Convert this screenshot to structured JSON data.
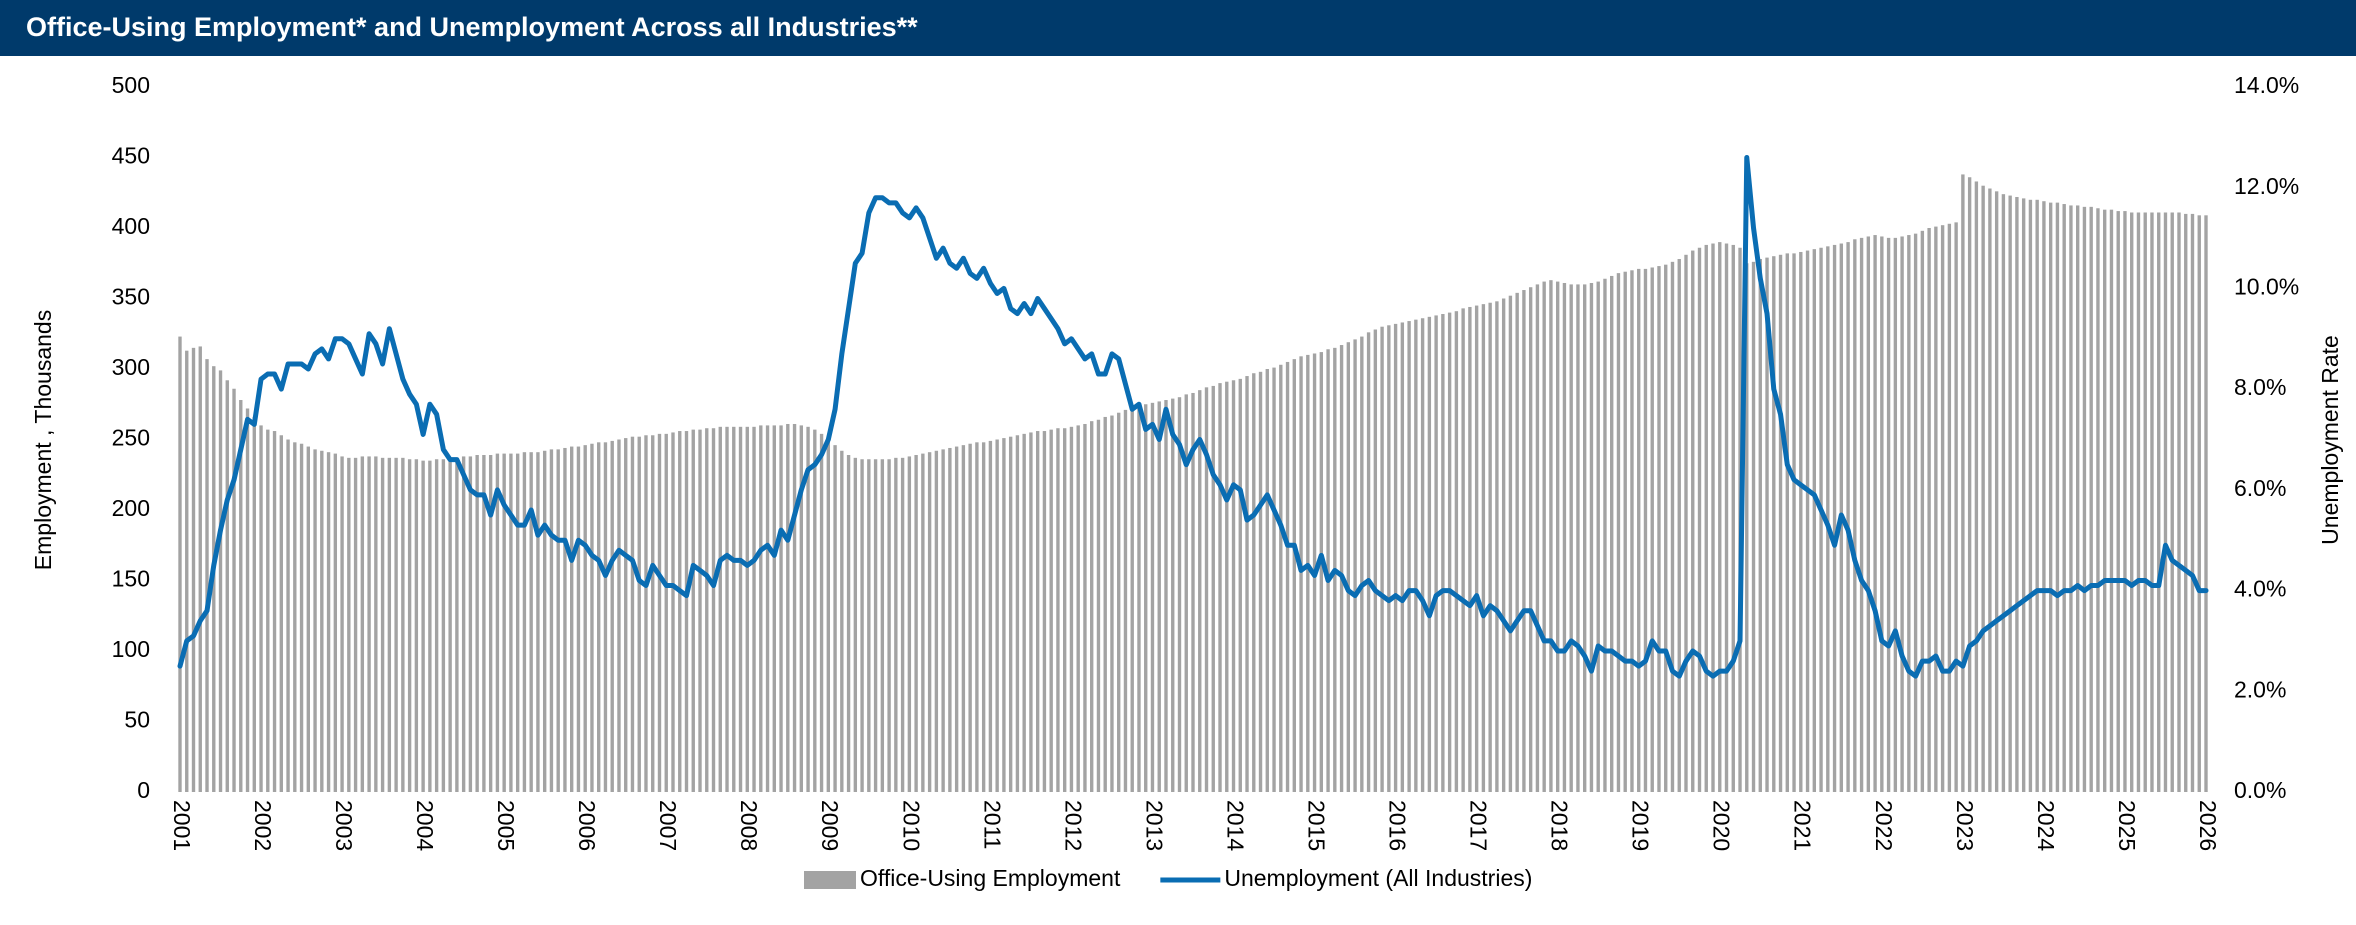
{
  "chart_data": {
    "type": "bar_line",
    "title": "Office-Using Employment* and Unemployment Across all Industries**",
    "y_label": "Employment , Thousands",
    "y2_label": "Unemployment Rate",
    "categories": [
      "2001",
      null,
      null,
      null,
      null,
      null,
      null,
      null,
      null,
      null,
      null,
      null,
      "2002",
      null,
      null,
      null,
      null,
      null,
      null,
      null,
      null,
      null,
      null,
      null,
      "2003",
      null,
      null,
      null,
      null,
      null,
      null,
      null,
      null,
      null,
      null,
      null,
      "2004",
      null,
      null,
      null,
      null,
      null,
      null,
      null,
      null,
      null,
      null,
      null,
      "2005",
      null,
      null,
      null,
      null,
      null,
      null,
      null,
      null,
      null,
      null,
      null,
      "2006",
      null,
      null,
      null,
      null,
      null,
      null,
      null,
      null,
      null,
      null,
      null,
      "2007",
      null,
      null,
      null,
      null,
      null,
      null,
      null,
      null,
      null,
      null,
      null,
      "2008",
      null,
      null,
      null,
      null,
      null,
      null,
      null,
      null,
      null,
      null,
      null,
      "2009",
      null,
      null,
      null,
      null,
      null,
      null,
      null,
      null,
      null,
      null,
      null,
      "2010",
      null,
      null,
      null,
      null,
      null,
      null,
      null,
      null,
      null,
      null,
      null,
      "2011",
      null,
      null,
      null,
      null,
      null,
      null,
      null,
      null,
      null,
      null,
      null,
      "2012",
      null,
      null,
      null,
      null,
      null,
      null,
      null,
      null,
      null,
      null,
      null,
      "2013",
      null,
      null,
      null,
      null,
      null,
      null,
      null,
      null,
      null,
      null,
      null,
      "2014",
      null,
      null,
      null,
      null,
      null,
      null,
      null,
      null,
      null,
      null,
      null,
      "2015",
      null,
      null,
      null,
      null,
      null,
      null,
      null,
      null,
      null,
      null,
      null,
      "2016",
      null,
      null,
      null,
      null,
      null,
      null,
      null,
      null,
      null,
      null,
      null,
      "2017",
      null,
      null,
      null,
      null,
      null,
      null,
      null,
      null,
      null,
      null,
      null,
      "2018",
      null,
      null,
      null,
      null,
      null,
      null,
      null,
      null,
      null,
      null,
      null,
      "2019",
      null,
      null,
      null,
      null,
      null,
      null,
      null,
      null,
      null,
      null,
      null,
      "2020",
      null,
      null,
      null,
      null,
      null,
      null,
      null,
      null,
      null,
      null,
      null,
      "2021",
      null,
      null,
      null,
      null,
      null,
      null,
      null,
      null,
      null,
      null,
      null,
      "2022",
      null,
      null,
      null,
      null,
      null,
      null,
      null,
      null,
      null,
      null,
      null,
      "2023",
      null,
      null,
      null,
      null,
      null,
      null,
      null,
      null,
      null,
      null,
      null,
      "2024",
      null,
      null,
      null,
      null,
      null,
      null,
      null,
      null,
      null,
      null,
      null,
      "2025",
      null,
      null,
      null,
      null,
      null,
      null,
      null,
      null,
      null,
      null,
      null,
      "2026"
    ],
    "series": [
      {
        "name": "Office-Using Employment",
        "type": "bar",
        "color": "#a3a3a3",
        "values": [
          323,
          313,
          315,
          316,
          307,
          302,
          299,
          292,
          286,
          278,
          272,
          266,
          260,
          257,
          256,
          253,
          250,
          248,
          247,
          245,
          243,
          242,
          241,
          240,
          238,
          237,
          237,
          238,
          238,
          238,
          237,
          237,
          237,
          237,
          236,
          236,
          235,
          235,
          236,
          236,
          237,
          237,
          238,
          238,
          239,
          239,
          239,
          240,
          240,
          240,
          240,
          241,
          241,
          241,
          242,
          243,
          243,
          244,
          245,
          245,
          246,
          247,
          248,
          248,
          249,
          250,
          251,
          252,
          252,
          253,
          253,
          254,
          254,
          255,
          256,
          256,
          257,
          257,
          258,
          258,
          259,
          259,
          259,
          259,
          259,
          259,
          260,
          260,
          260,
          260,
          261,
          261,
          260,
          259,
          257,
          254,
          250,
          246,
          242,
          239,
          237,
          236,
          236,
          236,
          236,
          236,
          237,
          237,
          238,
          239,
          240,
          241,
          242,
          243,
          244,
          245,
          246,
          247,
          248,
          248,
          249,
          250,
          251,
          252,
          253,
          254,
          255,
          256,
          256,
          257,
          258,
          258,
          259,
          260,
          261,
          263,
          264,
          266,
          267,
          269,
          271,
          272,
          274,
          275,
          276,
          277,
          278,
          279,
          280,
          282,
          283,
          285,
          287,
          288,
          290,
          291,
          292,
          293,
          295,
          297,
          298,
          300,
          301,
          303,
          305,
          307,
          309,
          310,
          311,
          312,
          314,
          315,
          317,
          319,
          321,
          323,
          326,
          328,
          330,
          331,
          332,
          333,
          334,
          335,
          336,
          337,
          338,
          339,
          340,
          341,
          343,
          344,
          345,
          346,
          347,
          348,
          350,
          352,
          354,
          356,
          358,
          360,
          362,
          363,
          362,
          361,
          360,
          360,
          360,
          361,
          362,
          364,
          366,
          368,
          369,
          370,
          371,
          371,
          372,
          373,
          374,
          376,
          378,
          381,
          384,
          386,
          388,
          389,
          390,
          389,
          388,
          386,
          375,
          376,
          378,
          379,
          380,
          381,
          382,
          382,
          383,
          384,
          385,
          386,
          387,
          388,
          389,
          390,
          392,
          393,
          394,
          395,
          394,
          393,
          393,
          394,
          395,
          396,
          398,
          400,
          401,
          402,
          403,
          404,
          438,
          436,
          433,
          430,
          428,
          426,
          424,
          423,
          422,
          421,
          420,
          420,
          419,
          418,
          418,
          417,
          416,
          416,
          415,
          415,
          414,
          413,
          413,
          412,
          412,
          411,
          411,
          411,
          411,
          411,
          411,
          411,
          411,
          410,
          410,
          409,
          409
        ]
      },
      {
        "name": "Unemployment (All Industries)",
        "type": "line",
        "axis": "y2",
        "color": "#0a6db3",
        "values": [
          2.5,
          3.0,
          3.1,
          3.4,
          3.6,
          4.5,
          5.2,
          5.8,
          6.2,
          6.8,
          7.4,
          7.3,
          8.2,
          8.3,
          8.3,
          8.0,
          8.5,
          8.5,
          8.5,
          8.4,
          8.7,
          8.8,
          8.6,
          9.0,
          9.0,
          8.9,
          8.6,
          8.3,
          9.1,
          8.9,
          8.5,
          9.2,
          8.7,
          8.2,
          7.9,
          7.7,
          7.1,
          7.7,
          7.5,
          6.8,
          6.6,
          6.6,
          6.3,
          6.0,
          5.9,
          5.9,
          5.5,
          6.0,
          5.7,
          5.5,
          5.3,
          5.3,
          5.6,
          5.1,
          5.3,
          5.1,
          5.0,
          5.0,
          4.6,
          5.0,
          4.9,
          4.7,
          4.6,
          4.3,
          4.6,
          4.8,
          4.7,
          4.6,
          4.2,
          4.1,
          4.5,
          4.3,
          4.1,
          4.1,
          4.0,
          3.9,
          4.5,
          4.4,
          4.3,
          4.1,
          4.6,
          4.7,
          4.6,
          4.6,
          4.5,
          4.6,
          4.8,
          4.9,
          4.7,
          5.2,
          5.0,
          5.5,
          6.0,
          6.4,
          6.5,
          6.7,
          7.0,
          7.6,
          8.7,
          9.6,
          10.5,
          10.7,
          11.5,
          11.8,
          11.8,
          11.7,
          11.7,
          11.5,
          11.4,
          11.6,
          11.4,
          11.0,
          10.6,
          10.8,
          10.5,
          10.4,
          10.6,
          10.3,
          10.2,
          10.4,
          10.1,
          9.9,
          10.0,
          9.6,
          9.5,
          9.7,
          9.5,
          9.8,
          9.6,
          9.4,
          9.2,
          8.9,
          9.0,
          8.8,
          8.6,
          8.7,
          8.3,
          8.3,
          8.7,
          8.6,
          8.1,
          7.6,
          7.7,
          7.2,
          7.3,
          7.0,
          7.6,
          7.1,
          6.9,
          6.5,
          6.8,
          7.0,
          6.7,
          6.3,
          6.1,
          5.8,
          6.1,
          6.0,
          5.4,
          5.5,
          5.7,
          5.9,
          5.6,
          5.3,
          4.9,
          4.9,
          4.4,
          4.5,
          4.3,
          4.7,
          4.2,
          4.4,
          4.3,
          4.0,
          3.9,
          4.1,
          4.2,
          4.0,
          3.9,
          3.8,
          3.9,
          3.8,
          4.0,
          4.0,
          3.8,
          3.5,
          3.9,
          4.0,
          4.0,
          3.9,
          3.8,
          3.7,
          3.9,
          3.5,
          3.7,
          3.6,
          3.4,
          3.2,
          3.4,
          3.6,
          3.6,
          3.3,
          3.0,
          3.0,
          2.8,
          2.8,
          3.0,
          2.9,
          2.7,
          2.4,
          2.9,
          2.8,
          2.8,
          2.7,
          2.6,
          2.6,
          2.5,
          2.6,
          3.0,
          2.8,
          2.8,
          2.4,
          2.3,
          2.6,
          2.8,
          2.7,
          2.4,
          2.3,
          2.4,
          2.4,
          2.6,
          3.0,
          12.6,
          11.2,
          10.2,
          9.5,
          8.0,
          7.5,
          6.5,
          6.2,
          6.1,
          6.0,
          5.9,
          5.6,
          5.3,
          4.9,
          5.5,
          5.2,
          4.6,
          4.2,
          4.0,
          3.6,
          3.0,
          2.9,
          3.2,
          2.7,
          2.4,
          2.3,
          2.6,
          2.6,
          2.7,
          2.4,
          2.4,
          2.6,
          2.5,
          2.9,
          3.0,
          3.2,
          3.3,
          3.4,
          3.5,
          3.6,
          3.7,
          3.8,
          3.9,
          4.0,
          4.0,
          4.0,
          3.9,
          4.0,
          4.0,
          4.1,
          4.0,
          4.1,
          4.1,
          4.2,
          4.2,
          4.2,
          4.2,
          4.1,
          4.2,
          4.2,
          4.1,
          4.1,
          4.9,
          4.6,
          4.5,
          4.4,
          4.3,
          4.0,
          4.0
        ]
      }
    ],
    "ylim": [
      0,
      500
    ],
    "yticks": [
      0,
      50,
      100,
      150,
      200,
      250,
      300,
      350,
      400,
      450,
      500
    ],
    "y2lim": [
      0,
      14
    ],
    "y2ticks": [
      {
        "value": 0,
        "label": "0.0%"
      },
      {
        "value": 2,
        "label": "2.0%"
      },
      {
        "value": 4,
        "label": "4.0%"
      },
      {
        "value": 6,
        "label": "6.0%"
      },
      {
        "value": 8,
        "label": "8.0%"
      },
      {
        "value": 10,
        "label": "10.0%"
      },
      {
        "value": 12,
        "label": "12.0%"
      },
      {
        "value": 14,
        "label": "14.0%"
      }
    ],
    "grid": false,
    "legend": "bottom",
    "header_color": "#003a6b"
  }
}
